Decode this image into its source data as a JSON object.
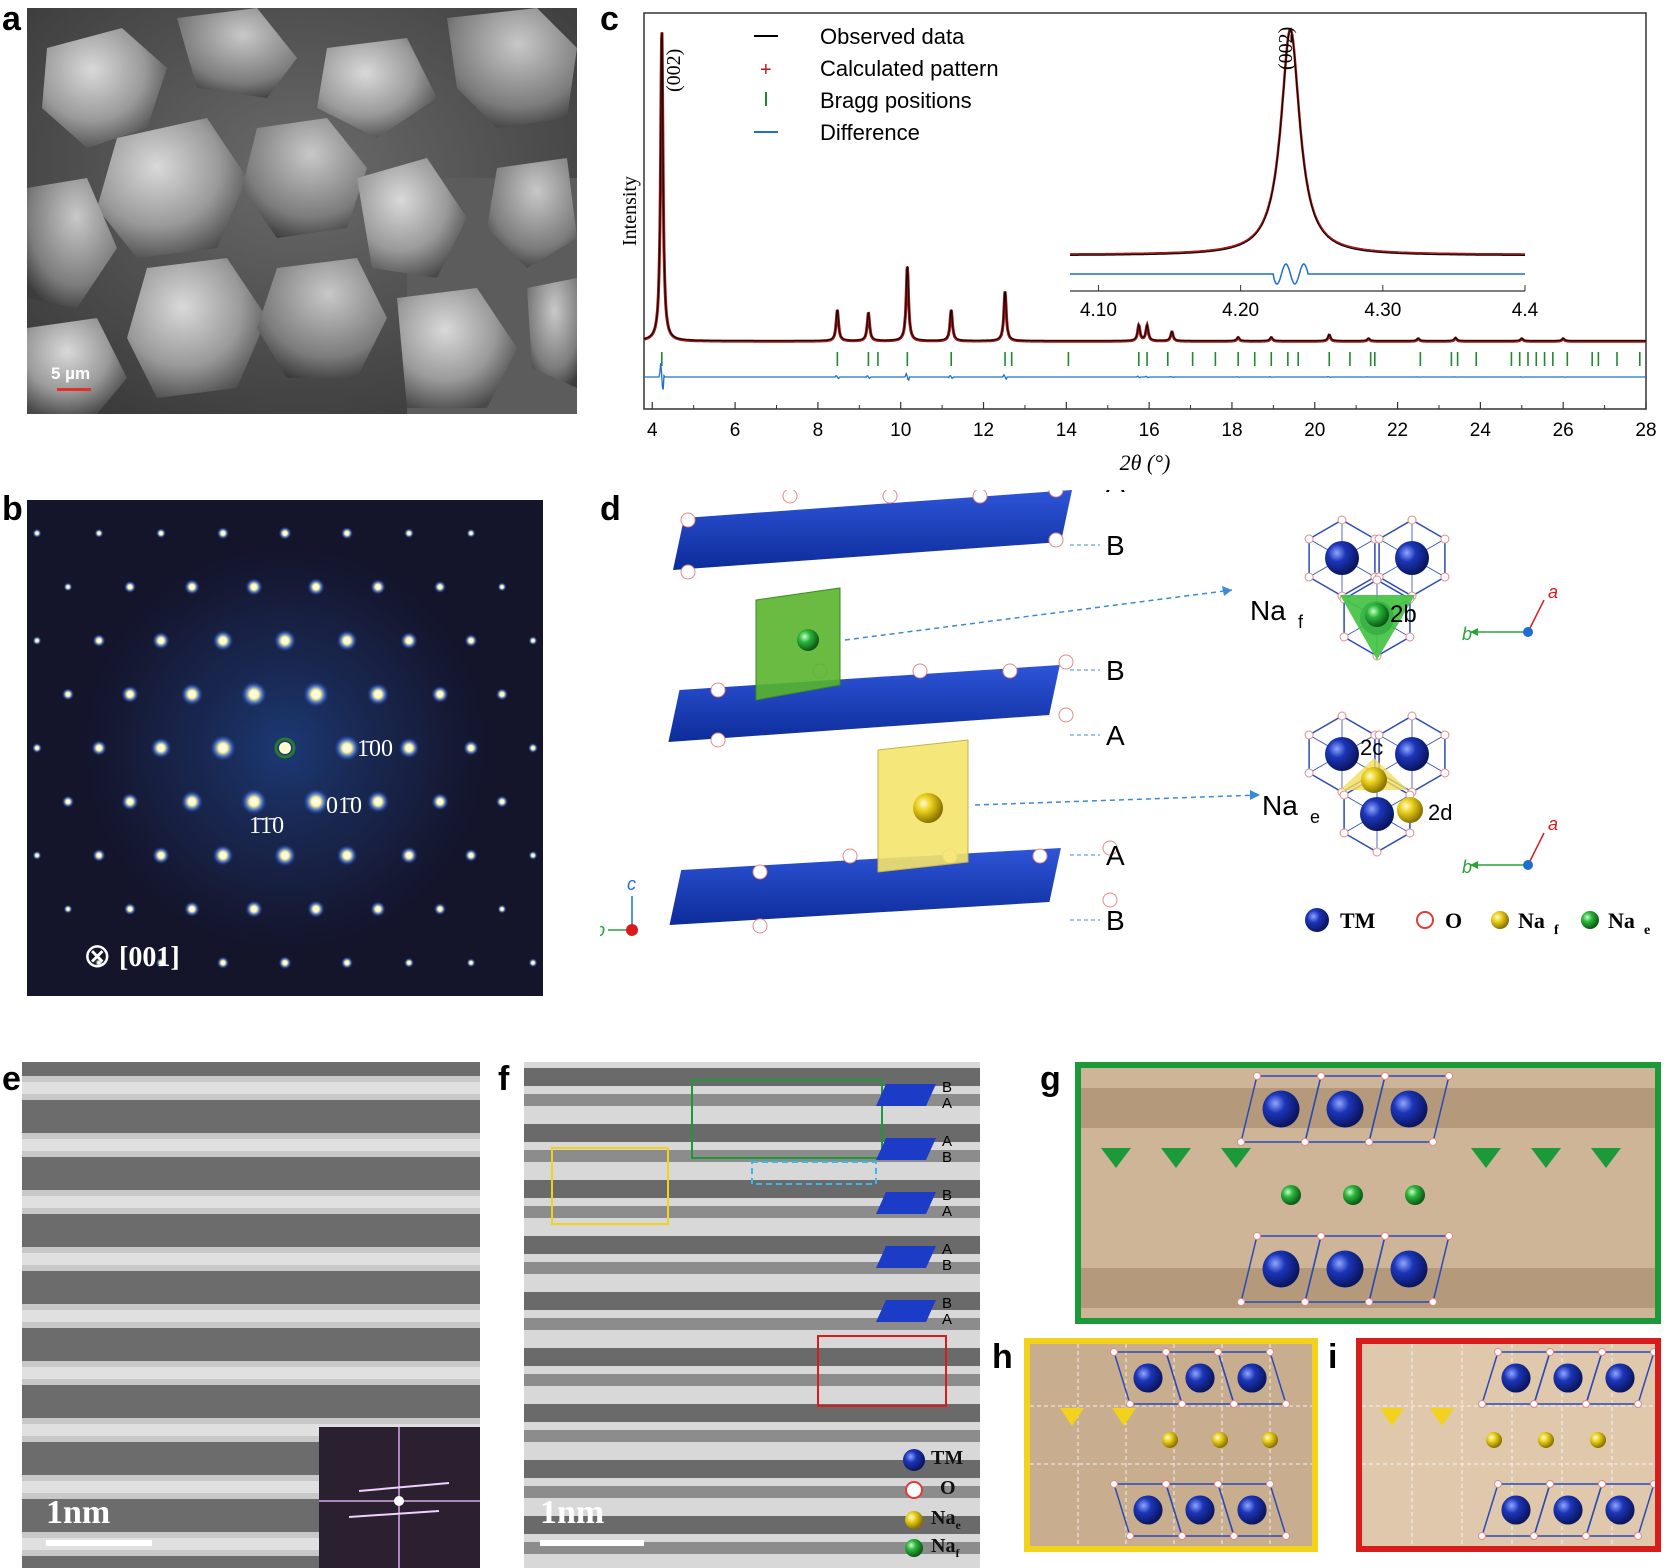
{
  "panels": {
    "a": {
      "letter": "a",
      "scale_bar": "5 µm"
    },
    "b": {
      "letter": "b",
      "zone_axis": "[001]",
      "zone_symbol": "⊗",
      "spots": {
        "s100": "1̄00",
        "s010": "01̄0",
        "s110": "1̄1̄0"
      }
    },
    "c": {
      "letter": "c"
    },
    "d": {
      "letter": "d",
      "layers": [
        "A",
        "B",
        "B",
        "A",
        "A",
        "B"
      ],
      "na_f_label": "Na",
      "na_f_sub": "f",
      "site_2b": "2b",
      "na_e_label": "Na",
      "na_e_sub": "e",
      "site_2c": "2c",
      "site_2d": "2d",
      "axes": {
        "a": "a",
        "b": "b",
        "c": "c"
      },
      "legend": [
        {
          "label": "TM",
          "sub": ""
        },
        {
          "label": "O",
          "sub": ""
        },
        {
          "label": "Na",
          "sub": "f"
        },
        {
          "label": "Na",
          "sub": "e"
        }
      ]
    },
    "e": {
      "letter": "e",
      "scale_bar": "1nm"
    },
    "f": {
      "letter": "f",
      "scale_bar": "1nm",
      "stack_labels": [
        [
          "B",
          "A"
        ],
        [
          "A",
          "B"
        ],
        [
          "B",
          "A"
        ],
        [
          "A",
          "B"
        ],
        [
          "B",
          "A"
        ]
      ],
      "legend": [
        {
          "label": "TM",
          "sub": ""
        },
        {
          "label": "O",
          "sub": ""
        },
        {
          "label": "Na",
          "sub": "e"
        },
        {
          "label": "Na",
          "sub": "f"
        }
      ]
    },
    "g": {
      "letter": "g"
    },
    "h": {
      "letter": "h"
    },
    "i": {
      "letter": "i"
    }
  },
  "colors": {
    "tm": "#1a2f9a",
    "oxygen": "#e23a3a",
    "na_yellow": "#e8c200",
    "na_green": "#2aa33a",
    "observed": "#000000",
    "calculated": "#b01c1c",
    "bragg": "#1e8a2e",
    "difference": "#1f6fd0",
    "frame_green": "#1c9a3a",
    "frame_yellow": "#f2d21a",
    "frame_red": "#d81c1c"
  },
  "chart_data": {
    "type": "line",
    "xlabel": "2θ (°)",
    "ylabel": "Intensity",
    "xlim": [
      3.8,
      28
    ],
    "xticks": [
      "4",
      "6",
      "8",
      "10",
      "12",
      "14",
      "16",
      "18",
      "20",
      "22",
      "24",
      "26",
      "28"
    ],
    "peak_label": "(002)",
    "legend_position": "top-left",
    "legend": [
      {
        "name": "Observed data",
        "marker": "line",
        "color": "#000000"
      },
      {
        "name": "Calculated pattern",
        "marker": "+",
        "color": "#b01c1c"
      },
      {
        "name": "Bragg positions",
        "marker": "|",
        "color": "#1e8a2e"
      },
      {
        "name": "Difference",
        "marker": "line",
        "color": "#1f6fd0"
      }
    ],
    "peaks": [
      {
        "x": 4.23,
        "h": 1.0
      },
      {
        "x": 8.47,
        "h": 0.1
      },
      {
        "x": 9.22,
        "h": 0.09
      },
      {
        "x": 10.16,
        "h": 0.24
      },
      {
        "x": 11.22,
        "h": 0.1
      },
      {
        "x": 12.52,
        "h": 0.16
      },
      {
        "x": 15.75,
        "h": 0.05
      },
      {
        "x": 15.95,
        "h": 0.05
      },
      {
        "x": 16.55,
        "h": 0.03
      },
      {
        "x": 18.15,
        "h": 0.012
      },
      {
        "x": 18.95,
        "h": 0.012
      },
      {
        "x": 20.35,
        "h": 0.02
      },
      {
        "x": 21.3,
        "h": 0.008
      },
      {
        "x": 22.5,
        "h": 0.008
      },
      {
        "x": 23.4,
        "h": 0.01
      },
      {
        "x": 25.0,
        "h": 0.008
      },
      {
        "x": 26.0,
        "h": 0.008
      }
    ],
    "bragg_positions": [
      4.23,
      8.47,
      9.22,
      9.45,
      10.16,
      11.22,
      12.52,
      12.68,
      14.05,
      15.75,
      15.95,
      16.45,
      17.05,
      17.6,
      18.15,
      18.55,
      18.95,
      19.35,
      19.6,
      20.35,
      20.85,
      21.35,
      21.45,
      22.55,
      23.3,
      23.45,
      23.9,
      24.75,
      24.95,
      25.15,
      25.35,
      25.55,
      25.75,
      26.1,
      26.7,
      26.85,
      27.3,
      27.85
    ],
    "inset": {
      "xlim": [
        4.08,
        4.4
      ],
      "xticks": [
        "4.10",
        "4.20",
        "4.30",
        "4.4"
      ],
      "peak_x": 4.235,
      "peak_label": "(002)"
    }
  }
}
